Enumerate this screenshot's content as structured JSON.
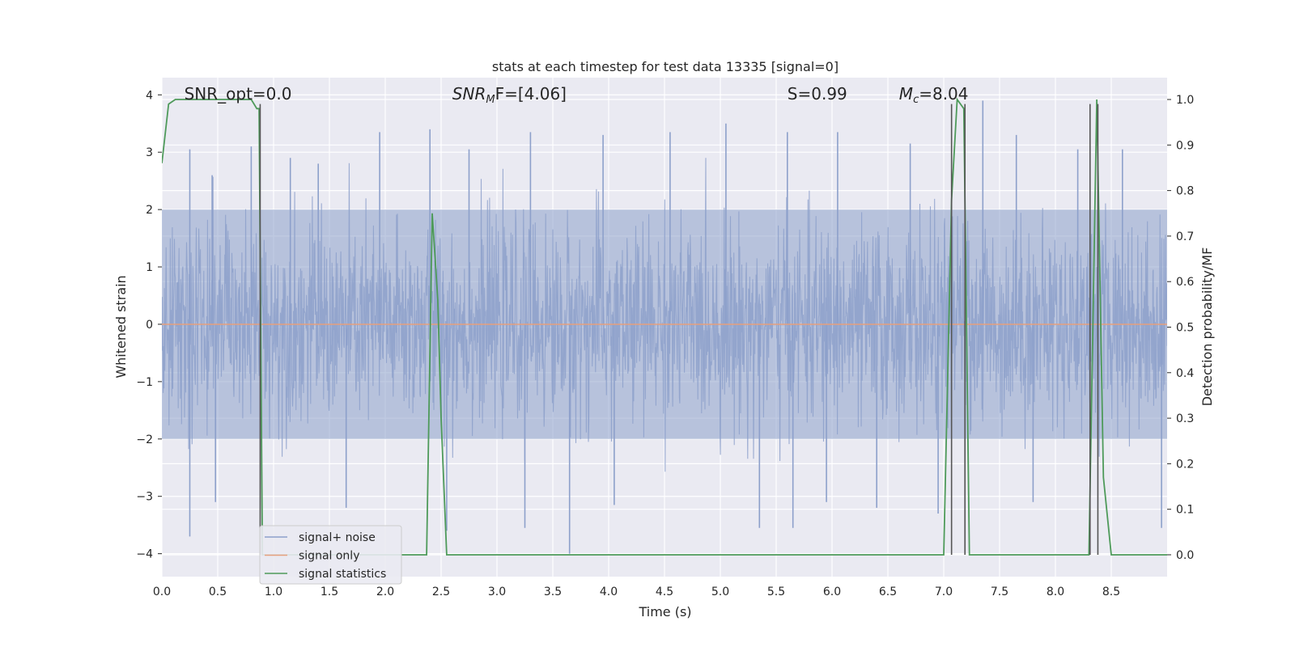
{
  "chart_data": {
    "type": "line",
    "title": "stats at each timestep for test data 13335 [signal=0]",
    "xlabel": "Time (s)",
    "ylabel": "Whitened strain",
    "ylabel_right": "Detection probability/MF",
    "xlim": [
      0,
      9.0
    ],
    "ylim": [
      -4.4,
      4.3
    ],
    "ylim_right": [
      -0.048,
      1.048
    ],
    "x_ticks": [
      0.0,
      0.5,
      1.0,
      1.5,
      2.0,
      2.5,
      3.0,
      3.5,
      4.0,
      4.5,
      5.0,
      5.5,
      6.0,
      6.5,
      7.0,
      7.5,
      8.0,
      8.5
    ],
    "x_tick_labels": [
      "0.0",
      "0.5",
      "1.0",
      "1.5",
      "2.0",
      "2.5",
      "3.0",
      "3.5",
      "4.0",
      "4.5",
      "5.0",
      "5.5",
      "6.0",
      "6.5",
      "7.0",
      "7.5",
      "8.0",
      "8.5"
    ],
    "y_ticks": [
      4,
      3,
      2,
      1,
      0,
      -1,
      -2,
      -3,
      -4
    ],
    "y_tick_labels": [
      "4",
      "3",
      "2",
      "1",
      "0",
      "−1",
      "−2",
      "−3",
      "−4"
    ],
    "y_right_ticks": [
      1.0,
      0.9,
      0.8,
      0.7,
      0.6,
      0.5,
      0.4,
      0.3,
      0.2,
      0.1,
      0.0
    ],
    "y_right_tick_labels": [
      "1.0",
      "0.9",
      "0.8",
      "0.7",
      "0.6",
      "0.5",
      "0.4",
      "0.3",
      "0.2",
      "0.1",
      "0.0"
    ],
    "grid": true,
    "legend_position": "lower-left",
    "series": [
      {
        "name": "signal+ noise",
        "color": "#8da0cb",
        "note_values": "dense whitened strain trace, roughly Gaussian, amplitude mostly within ±2.5",
        "band": [
          -2.0,
          2.0
        ],
        "peaks": [
          {
            "x": 0.25,
            "y": 3.05
          },
          {
            "x": 0.45,
            "y": 2.6
          },
          {
            "x": 0.8,
            "y": 3.1
          },
          {
            "x": 1.15,
            "y": 2.9
          },
          {
            "x": 1.4,
            "y": 2.8
          },
          {
            "x": 1.95,
            "y": 3.35
          },
          {
            "x": 2.4,
            "y": 3.4
          },
          {
            "x": 2.75,
            "y": 3.05
          },
          {
            "x": 3.3,
            "y": 3.35
          },
          {
            "x": 3.95,
            "y": 3.3
          },
          {
            "x": 4.55,
            "y": 3.35
          },
          {
            "x": 5.05,
            "y": 3.5
          },
          {
            "x": 5.6,
            "y": 3.35
          },
          {
            "x": 6.05,
            "y": 3.35
          },
          {
            "x": 6.7,
            "y": 3.15
          },
          {
            "x": 7.35,
            "y": 3.9
          },
          {
            "x": 7.65,
            "y": 3.3
          },
          {
            "x": 8.2,
            "y": 3.05
          },
          {
            "x": 8.6,
            "y": 3.05
          }
        ],
        "troughs": [
          {
            "x": 0.25,
            "y": -3.7
          },
          {
            "x": 0.48,
            "y": -3.1
          },
          {
            "x": 1.65,
            "y": -3.2
          },
          {
            "x": 2.55,
            "y": -3.6
          },
          {
            "x": 3.25,
            "y": -3.55
          },
          {
            "x": 3.65,
            "y": -4.0
          },
          {
            "x": 4.05,
            "y": -3.15
          },
          {
            "x": 5.35,
            "y": -3.55
          },
          {
            "x": 5.65,
            "y": -3.55
          },
          {
            "x": 5.95,
            "y": -3.1
          },
          {
            "x": 6.4,
            "y": -3.2
          },
          {
            "x": 6.95,
            "y": -3.3
          },
          {
            "x": 7.8,
            "y": -3.1
          },
          {
            "x": 8.95,
            "y": -3.55
          }
        ]
      },
      {
        "name": "signal only",
        "color": "#e5a07e",
        "x": [
          0.0,
          9.0
        ],
        "y": [
          0.0,
          0.0
        ]
      },
      {
        "name": "signal statistics",
        "color": "#4e9a5a",
        "axis": "right",
        "x": [
          0.0,
          0.06,
          0.12,
          0.2,
          0.3,
          0.4,
          0.5,
          0.6,
          0.7,
          0.8,
          0.85,
          0.87,
          0.9,
          0.95,
          1.0,
          1.5,
          2.0,
          2.3,
          2.37,
          2.42,
          2.47,
          2.5,
          2.55,
          2.6,
          3.0,
          4.0,
          5.0,
          6.0,
          6.95,
          7.0,
          7.07,
          7.12,
          7.18,
          7.23,
          7.28,
          7.5,
          8.0,
          8.25,
          8.3,
          8.37,
          8.43,
          8.5,
          8.6,
          9.0
        ],
        "y": [
          0.86,
          0.99,
          1.0,
          1.0,
          1.0,
          1.0,
          1.0,
          1.0,
          1.0,
          1.0,
          0.98,
          0.98,
          0.0,
          0.0,
          0.0,
          0.0,
          0.0,
          0.0,
          0.0,
          0.75,
          0.56,
          0.3,
          0.0,
          0.0,
          0.0,
          0.0,
          0.0,
          0.0,
          0.0,
          0.0,
          0.78,
          1.0,
          0.98,
          0.0,
          0.0,
          0.0,
          0.0,
          0.0,
          0.0,
          1.0,
          0.17,
          0.0,
          0.0,
          0.0
        ]
      }
    ],
    "vertical_markers": {
      "color": "#555555",
      "x": [
        0.88,
        7.07,
        7.19,
        8.31,
        8.38
      ],
      "y_right_range": [
        0.0,
        0.99
      ]
    },
    "annotations": [
      {
        "label": "SNR_opt=0.0",
        "x": 0.2
      },
      {
        "label": "SNR",
        "sub": "M",
        "suffix": "F=[4.06]",
        "x": 2.6
      },
      {
        "label": "S=0.99",
        "x": 5.6
      },
      {
        "label": "M",
        "sub": "c",
        "suffix": "=8.04",
        "x": 6.6
      }
    ]
  }
}
